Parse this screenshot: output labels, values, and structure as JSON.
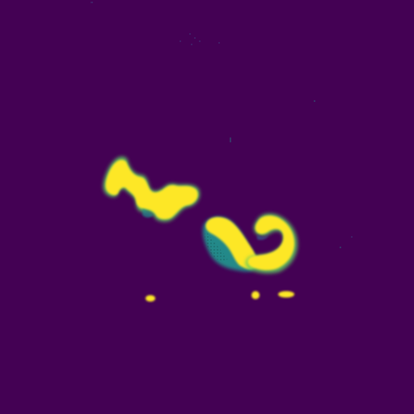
{
  "image": {
    "kind": "viridis-colormap-mask",
    "background_color": "#440154",
    "colors": {
      "high": "#fde725",
      "mid_green": "#5ec962",
      "mid_teal": "#21918c",
      "mid_blue": "#3b528b"
    },
    "features": [
      "left-elongated-blob",
      "central-curved-blob",
      "right-hook-blob",
      "small-dot-left",
      "small-dot-center",
      "small-dot-right",
      "faint-speckles"
    ]
  }
}
